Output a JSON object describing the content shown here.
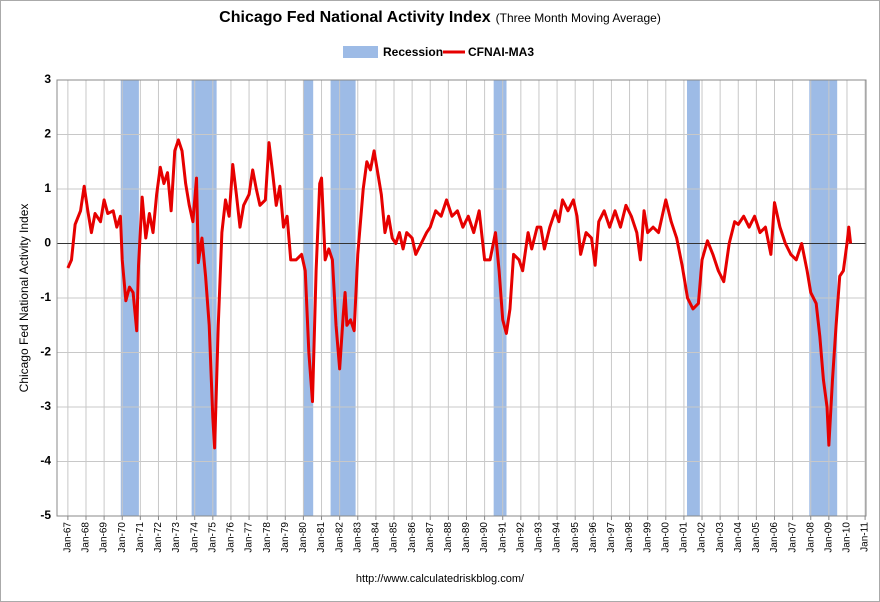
{
  "chart_data": {
    "type": "line",
    "title": "Chicago Fed National Activity Index",
    "subtitle": "(Three Month Moving Average)",
    "y_label": "Chicago Fed National Activity Index",
    "source": "http://www.calculatedriskblog.com/",
    "xlim": [
      1966.4,
      2011.05
    ],
    "ylim": [
      -5,
      3
    ],
    "yticks": [
      -5,
      -4,
      -3,
      -2,
      -1,
      0,
      1,
      2,
      3
    ],
    "xticks": [
      {
        "value": 1967,
        "label": "Jan-67"
      },
      {
        "value": 1968,
        "label": "Jan-68"
      },
      {
        "value": 1969,
        "label": "Jan-69"
      },
      {
        "value": 1970,
        "label": "Jan-70"
      },
      {
        "value": 1971,
        "label": "Jan-71"
      },
      {
        "value": 1972,
        "label": "Jan-72"
      },
      {
        "value": 1973,
        "label": "Jan-73"
      },
      {
        "value": 1974,
        "label": "Jan-74"
      },
      {
        "value": 1975,
        "label": "Jan-75"
      },
      {
        "value": 1976,
        "label": "Jan-76"
      },
      {
        "value": 1977,
        "label": "Jan-77"
      },
      {
        "value": 1978,
        "label": "Jan-78"
      },
      {
        "value": 1979,
        "label": "Jan-79"
      },
      {
        "value": 1980,
        "label": "Jan-80"
      },
      {
        "value": 1981,
        "label": "Jan-81"
      },
      {
        "value": 1982,
        "label": "Jan-82"
      },
      {
        "value": 1983,
        "label": "Jan-83"
      },
      {
        "value": 1984,
        "label": "Jan-84"
      },
      {
        "value": 1985,
        "label": "Jan-85"
      },
      {
        "value": 1986,
        "label": "Jan-86"
      },
      {
        "value": 1987,
        "label": "Jan-87"
      },
      {
        "value": 1988,
        "label": "Jan-88"
      },
      {
        "value": 1989,
        "label": "Jan-89"
      },
      {
        "value": 1990,
        "label": "Jan-90"
      },
      {
        "value": 1991,
        "label": "Jan-91"
      },
      {
        "value": 1992,
        "label": "Jan-92"
      },
      {
        "value": 1993,
        "label": "Jan-93"
      },
      {
        "value": 1994,
        "label": "Jan-94"
      },
      {
        "value": 1995,
        "label": "Jan-95"
      },
      {
        "value": 1996,
        "label": "Jan-96"
      },
      {
        "value": 1997,
        "label": "Jan-97"
      },
      {
        "value": 1998,
        "label": "Jan-98"
      },
      {
        "value": 1999,
        "label": "Jan-99"
      },
      {
        "value": 2000,
        "label": "Jan-00"
      },
      {
        "value": 2001,
        "label": "Jan-01"
      },
      {
        "value": 2002,
        "label": "Jan-02"
      },
      {
        "value": 2003,
        "label": "Jan-03"
      },
      {
        "value": 2004,
        "label": "Jan-04"
      },
      {
        "value": 2005,
        "label": "Jan-05"
      },
      {
        "value": 2006,
        "label": "Jan-06"
      },
      {
        "value": 2007,
        "label": "Jan-07"
      },
      {
        "value": 2008,
        "label": "Jan-08"
      },
      {
        "value": 2009,
        "label": "Jan-09"
      },
      {
        "value": 2010,
        "label": "Jan-10"
      },
      {
        "value": 2011,
        "label": "Jan-11"
      }
    ],
    "grid": true,
    "recessions": {
      "name": "Recession",
      "color": "#9dbbe6",
      "ranges": [
        [
          1969.92,
          1970.92
        ],
        [
          1973.83,
          1975.21
        ],
        [
          1980.0,
          1980.54
        ],
        [
          1981.5,
          1982.88
        ],
        [
          1990.5,
          1991.21
        ],
        [
          2001.17,
          2001.88
        ],
        [
          2007.92,
          2009.46
        ]
      ]
    },
    "x": [
      1967.0,
      1967.2,
      1967.4,
      1967.7,
      1967.9,
      1968.1,
      1968.3,
      1968.5,
      1968.8,
      1969.0,
      1969.2,
      1969.5,
      1969.7,
      1969.9,
      1970.0,
      1970.2,
      1970.4,
      1970.6,
      1970.8,
      1970.9,
      1971.1,
      1971.3,
      1971.5,
      1971.7,
      1971.9,
      1972.1,
      1972.3,
      1972.5,
      1972.7,
      1972.9,
      1973.1,
      1973.3,
      1973.5,
      1973.7,
      1973.9,
      1974.1,
      1974.2,
      1974.4,
      1974.6,
      1974.8,
      1975.0,
      1975.1,
      1975.3,
      1975.5,
      1975.7,
      1975.9,
      1976.1,
      1976.3,
      1976.5,
      1976.7,
      1977.0,
      1977.2,
      1977.4,
      1977.6,
      1977.9,
      1978.1,
      1978.3,
      1978.5,
      1978.7,
      1978.9,
      1979.1,
      1979.3,
      1979.6,
      1979.9,
      1980.1,
      1980.3,
      1980.5,
      1980.7,
      1980.9,
      1981.0,
      1981.2,
      1981.4,
      1981.6,
      1981.8,
      1982.0,
      1982.2,
      1982.3,
      1982.4,
      1982.6,
      1982.8,
      1983.0,
      1983.3,
      1983.5,
      1983.7,
      1983.9,
      1984.1,
      1984.3,
      1984.5,
      1984.7,
      1984.9,
      1985.1,
      1985.3,
      1985.5,
      1985.7,
      1986.0,
      1986.2,
      1986.5,
      1986.8,
      1987.0,
      1987.3,
      1987.6,
      1987.9,
      1988.2,
      1988.5,
      1988.8,
      1989.1,
      1989.4,
      1989.7,
      1990.0,
      1990.3,
      1990.6,
      1990.8,
      1991.0,
      1991.2,
      1991.4,
      1991.6,
      1991.9,
      1992.1,
      1992.4,
      1992.6,
      1992.9,
      1993.1,
      1993.3,
      1993.6,
      1993.9,
      1994.1,
      1994.3,
      1994.6,
      1994.9,
      1995.1,
      1995.3,
      1995.6,
      1995.9,
      1996.1,
      1996.3,
      1996.6,
      1996.9,
      1997.2,
      1997.5,
      1997.8,
      1998.1,
      1998.4,
      1998.6,
      1998.8,
      1999.0,
      1999.3,
      1999.6,
      2000.0,
      2000.3,
      2000.6,
      2000.9,
      2001.2,
      2001.5,
      2001.8,
      2002.0,
      2002.3,
      2002.6,
      2002.9,
      2003.2,
      2003.5,
      2003.8,
      2004.0,
      2004.3,
      2004.6,
      2004.9,
      2005.2,
      2005.5,
      2005.8,
      2006.0,
      2006.3,
      2006.6,
      2006.9,
      2007.2,
      2007.5,
      2007.8,
      2008.0,
      2008.3,
      2008.5,
      2008.7,
      2008.9,
      2009.0,
      2009.2,
      2009.4,
      2009.6,
      2009.8,
      2010.0,
      2010.1,
      2010.2
    ],
    "series": [
      {
        "name": "CFNAI-MA3",
        "color": "#e60000",
        "values": [
          -0.45,
          -0.3,
          0.35,
          0.6,
          1.05,
          0.6,
          0.2,
          0.55,
          0.4,
          0.8,
          0.55,
          0.6,
          0.3,
          0.5,
          -0.3,
          -1.05,
          -0.8,
          -0.9,
          -1.6,
          -0.4,
          0.85,
          0.1,
          0.55,
          0.2,
          0.9,
          1.4,
          1.1,
          1.3,
          0.6,
          1.7,
          1.9,
          1.7,
          1.1,
          0.7,
          0.4,
          1.2,
          -0.35,
          0.1,
          -0.6,
          -1.5,
          -3.2,
          -3.75,
          -1.5,
          0.2,
          0.8,
          0.5,
          1.45,
          0.9,
          0.3,
          0.7,
          0.9,
          1.35,
          1.0,
          0.7,
          0.8,
          1.85,
          1.3,
          0.7,
          1.05,
          0.3,
          0.5,
          -0.3,
          -0.3,
          -0.2,
          -0.5,
          -2.0,
          -2.9,
          -0.5,
          1.1,
          1.2,
          -0.3,
          -0.1,
          -0.3,
          -1.5,
          -2.3,
          -1.3,
          -0.9,
          -1.5,
          -1.4,
          -1.6,
          -0.2,
          1.0,
          1.5,
          1.35,
          1.7,
          1.3,
          0.9,
          0.2,
          0.5,
          0.1,
          0.0,
          0.2,
          -0.1,
          0.2,
          0.1,
          -0.2,
          0.0,
          0.2,
          0.3,
          0.6,
          0.5,
          0.8,
          0.5,
          0.6,
          0.3,
          0.5,
          0.2,
          0.6,
          -0.3,
          -0.3,
          0.2,
          -0.5,
          -1.4,
          -1.65,
          -1.2,
          -0.2,
          -0.3,
          -0.5,
          0.2,
          -0.1,
          0.3,
          0.3,
          -0.1,
          0.3,
          0.6,
          0.4,
          0.8,
          0.6,
          0.8,
          0.5,
          -0.2,
          0.2,
          0.1,
          -0.4,
          0.4,
          0.6,
          0.3,
          0.6,
          0.3,
          0.7,
          0.5,
          0.2,
          -0.3,
          0.6,
          0.2,
          0.3,
          0.2,
          0.8,
          0.4,
          0.1,
          -0.4,
          -1.0,
          -1.2,
          -1.1,
          -0.3,
          0.05,
          -0.2,
          -0.5,
          -0.7,
          0.0,
          0.4,
          0.35,
          0.5,
          0.3,
          0.5,
          0.2,
          0.3,
          -0.2,
          0.75,
          0.3,
          0.0,
          -0.2,
          -0.3,
          0.0,
          -0.5,
          -0.9,
          -1.1,
          -1.7,
          -2.5,
          -3.0,
          -3.7,
          -2.5,
          -1.5,
          -0.6,
          -0.5,
          0.0,
          0.3,
          0.0
        ]
      }
    ]
  }
}
